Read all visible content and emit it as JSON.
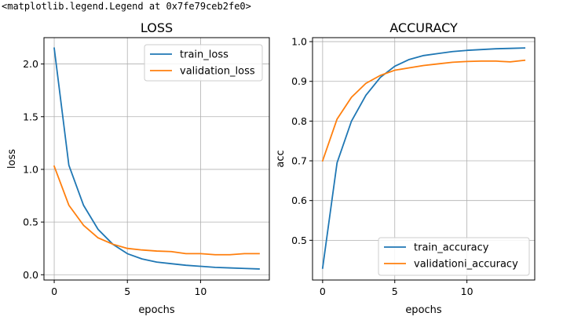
{
  "output_text": "<matplotlib.legend.Legend at 0x7fe79ceb2fe0>",
  "colors": {
    "train": "#1f77b4",
    "validation": "#ff7f0e",
    "grid": "#b0b0b0"
  },
  "chart_data": [
    {
      "type": "line",
      "title": "LOSS",
      "xlabel": "epochs",
      "ylabel": "loss",
      "xlim": [
        -0.7,
        14.7
      ],
      "ylim": [
        -0.05,
        2.25
      ],
      "xticks": [
        0,
        5,
        10
      ],
      "yticks": [
        0.0,
        0.5,
        1.0,
        1.5,
        2.0
      ],
      "ytick_labels": [
        "0.0",
        "0.5",
        "1.0",
        "1.5",
        "2.0"
      ],
      "grid": true,
      "legend_position": "upper right",
      "x": [
        0,
        1,
        2,
        3,
        4,
        5,
        6,
        7,
        8,
        9,
        10,
        11,
        12,
        13,
        14
      ],
      "series": [
        {
          "name": "train_loss",
          "color_key": "train",
          "values": [
            2.15,
            1.04,
            0.66,
            0.43,
            0.29,
            0.2,
            0.15,
            0.12,
            0.105,
            0.09,
            0.08,
            0.07,
            0.065,
            0.06,
            0.055
          ]
        },
        {
          "name": "validation_loss",
          "color_key": "validation",
          "values": [
            1.03,
            0.66,
            0.47,
            0.35,
            0.29,
            0.25,
            0.235,
            0.225,
            0.22,
            0.2,
            0.2,
            0.19,
            0.19,
            0.2,
            0.2
          ]
        }
      ]
    },
    {
      "type": "line",
      "title": "ACCURACY",
      "xlabel": "epochs",
      "ylabel": "acc",
      "xlim": [
        -0.7,
        14.7
      ],
      "ylim": [
        0.4,
        1.01
      ],
      "xticks": [
        0,
        5,
        10
      ],
      "yticks": [
        0.5,
        0.6,
        0.7,
        0.8,
        0.9,
        1.0
      ],
      "ytick_labels": [
        "0.5",
        "0.6",
        "0.7",
        "0.8",
        "0.9",
        "1.0"
      ],
      "grid": true,
      "legend_position": "lower right",
      "x": [
        0,
        1,
        2,
        3,
        4,
        5,
        6,
        7,
        8,
        9,
        10,
        11,
        12,
        13,
        14
      ],
      "series": [
        {
          "name": "train_accuracy",
          "color_key": "train",
          "values": [
            0.43,
            0.695,
            0.8,
            0.865,
            0.91,
            0.938,
            0.955,
            0.965,
            0.97,
            0.975,
            0.978,
            0.98,
            0.982,
            0.983,
            0.984
          ]
        },
        {
          "name": "validationi_accuracy",
          "color_key": "validation",
          "values": [
            0.7,
            0.805,
            0.86,
            0.895,
            0.915,
            0.928,
            0.934,
            0.94,
            0.944,
            0.948,
            0.95,
            0.951,
            0.951,
            0.949,
            0.953
          ]
        }
      ]
    }
  ]
}
